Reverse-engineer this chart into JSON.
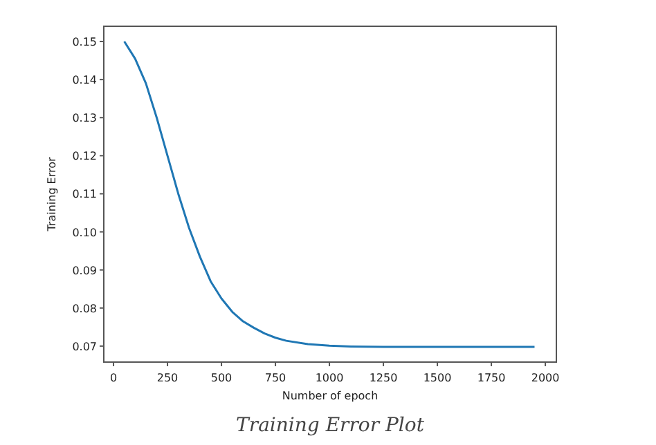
{
  "chart_data": {
    "type": "line",
    "xlabel": "Number of epoch",
    "ylabel": "Training Error",
    "annotations": [
      "Training Error Plot"
    ],
    "x": [
      50,
      100,
      150,
      200,
      250,
      300,
      350,
      400,
      450,
      500,
      550,
      600,
      650,
      700,
      750,
      800,
      900,
      1000,
      1100,
      1250,
      1500,
      1750,
      1950
    ],
    "series": [
      {
        "color": "#1f77b4",
        "values": [
          0.15,
          0.1455,
          0.139,
          0.13,
          0.12,
          0.11,
          0.101,
          0.0935,
          0.087,
          0.0825,
          0.079,
          0.0765,
          0.0748,
          0.0733,
          0.0722,
          0.0714,
          0.0705,
          0.0701,
          0.0699,
          0.0698,
          0.0698,
          0.0698,
          0.0698
        ]
      }
    ],
    "xlim": [
      -45,
      2051
    ],
    "ylim": [
      0.0658,
      0.154
    ],
    "xticks": [
      0,
      250,
      500,
      750,
      1000,
      1250,
      1500,
      1750,
      2000
    ],
    "yticks": [
      {
        "value": 0.07,
        "label": "0.07"
      },
      {
        "value": 0.08,
        "label": "0.08"
      },
      {
        "value": 0.09,
        "label": "0.09"
      },
      {
        "value": 0.1,
        "label": "0.10"
      },
      {
        "value": 0.11,
        "label": "0.11"
      },
      {
        "value": 0.12,
        "label": "0.12"
      },
      {
        "value": 0.13,
        "label": "0.13"
      },
      {
        "value": 0.14,
        "label": "0.14"
      },
      {
        "value": 0.15,
        "label": "0.15"
      }
    ],
    "grid": false,
    "marker": "none",
    "line_style": "solid"
  }
}
